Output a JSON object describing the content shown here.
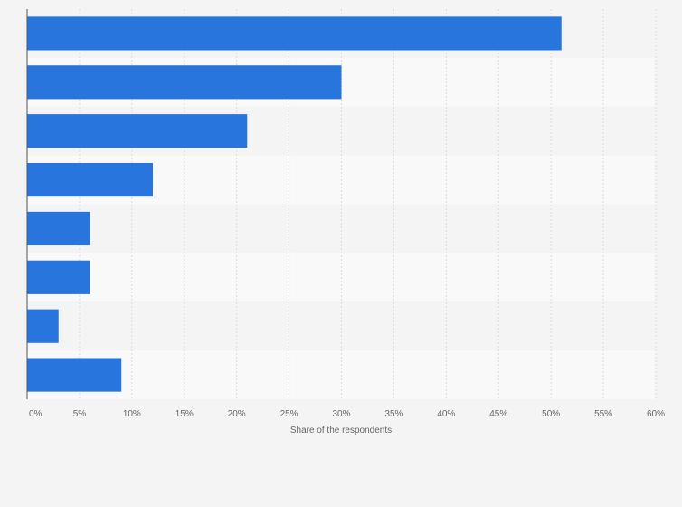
{
  "chart_data": {
    "type": "bar",
    "orientation": "horizontal",
    "categories": [
      "",
      "",
      "",
      "",
      "",
      "",
      "",
      ""
    ],
    "values": [
      51,
      30,
      21,
      12,
      6,
      6,
      3,
      9
    ],
    "xlabel": "Share of the respondents",
    "xlim": [
      0,
      60
    ],
    "ticks": [
      0,
      5,
      10,
      15,
      20,
      25,
      30,
      35,
      40,
      45,
      50,
      55,
      60
    ],
    "tick_labels": [
      "0%",
      "5%",
      "10%",
      "15%",
      "20%",
      "25%",
      "30%",
      "35%",
      "40%",
      "45%",
      "50%",
      "55%",
      "60%"
    ],
    "grid": true,
    "bar_color": "#2876dd"
  }
}
